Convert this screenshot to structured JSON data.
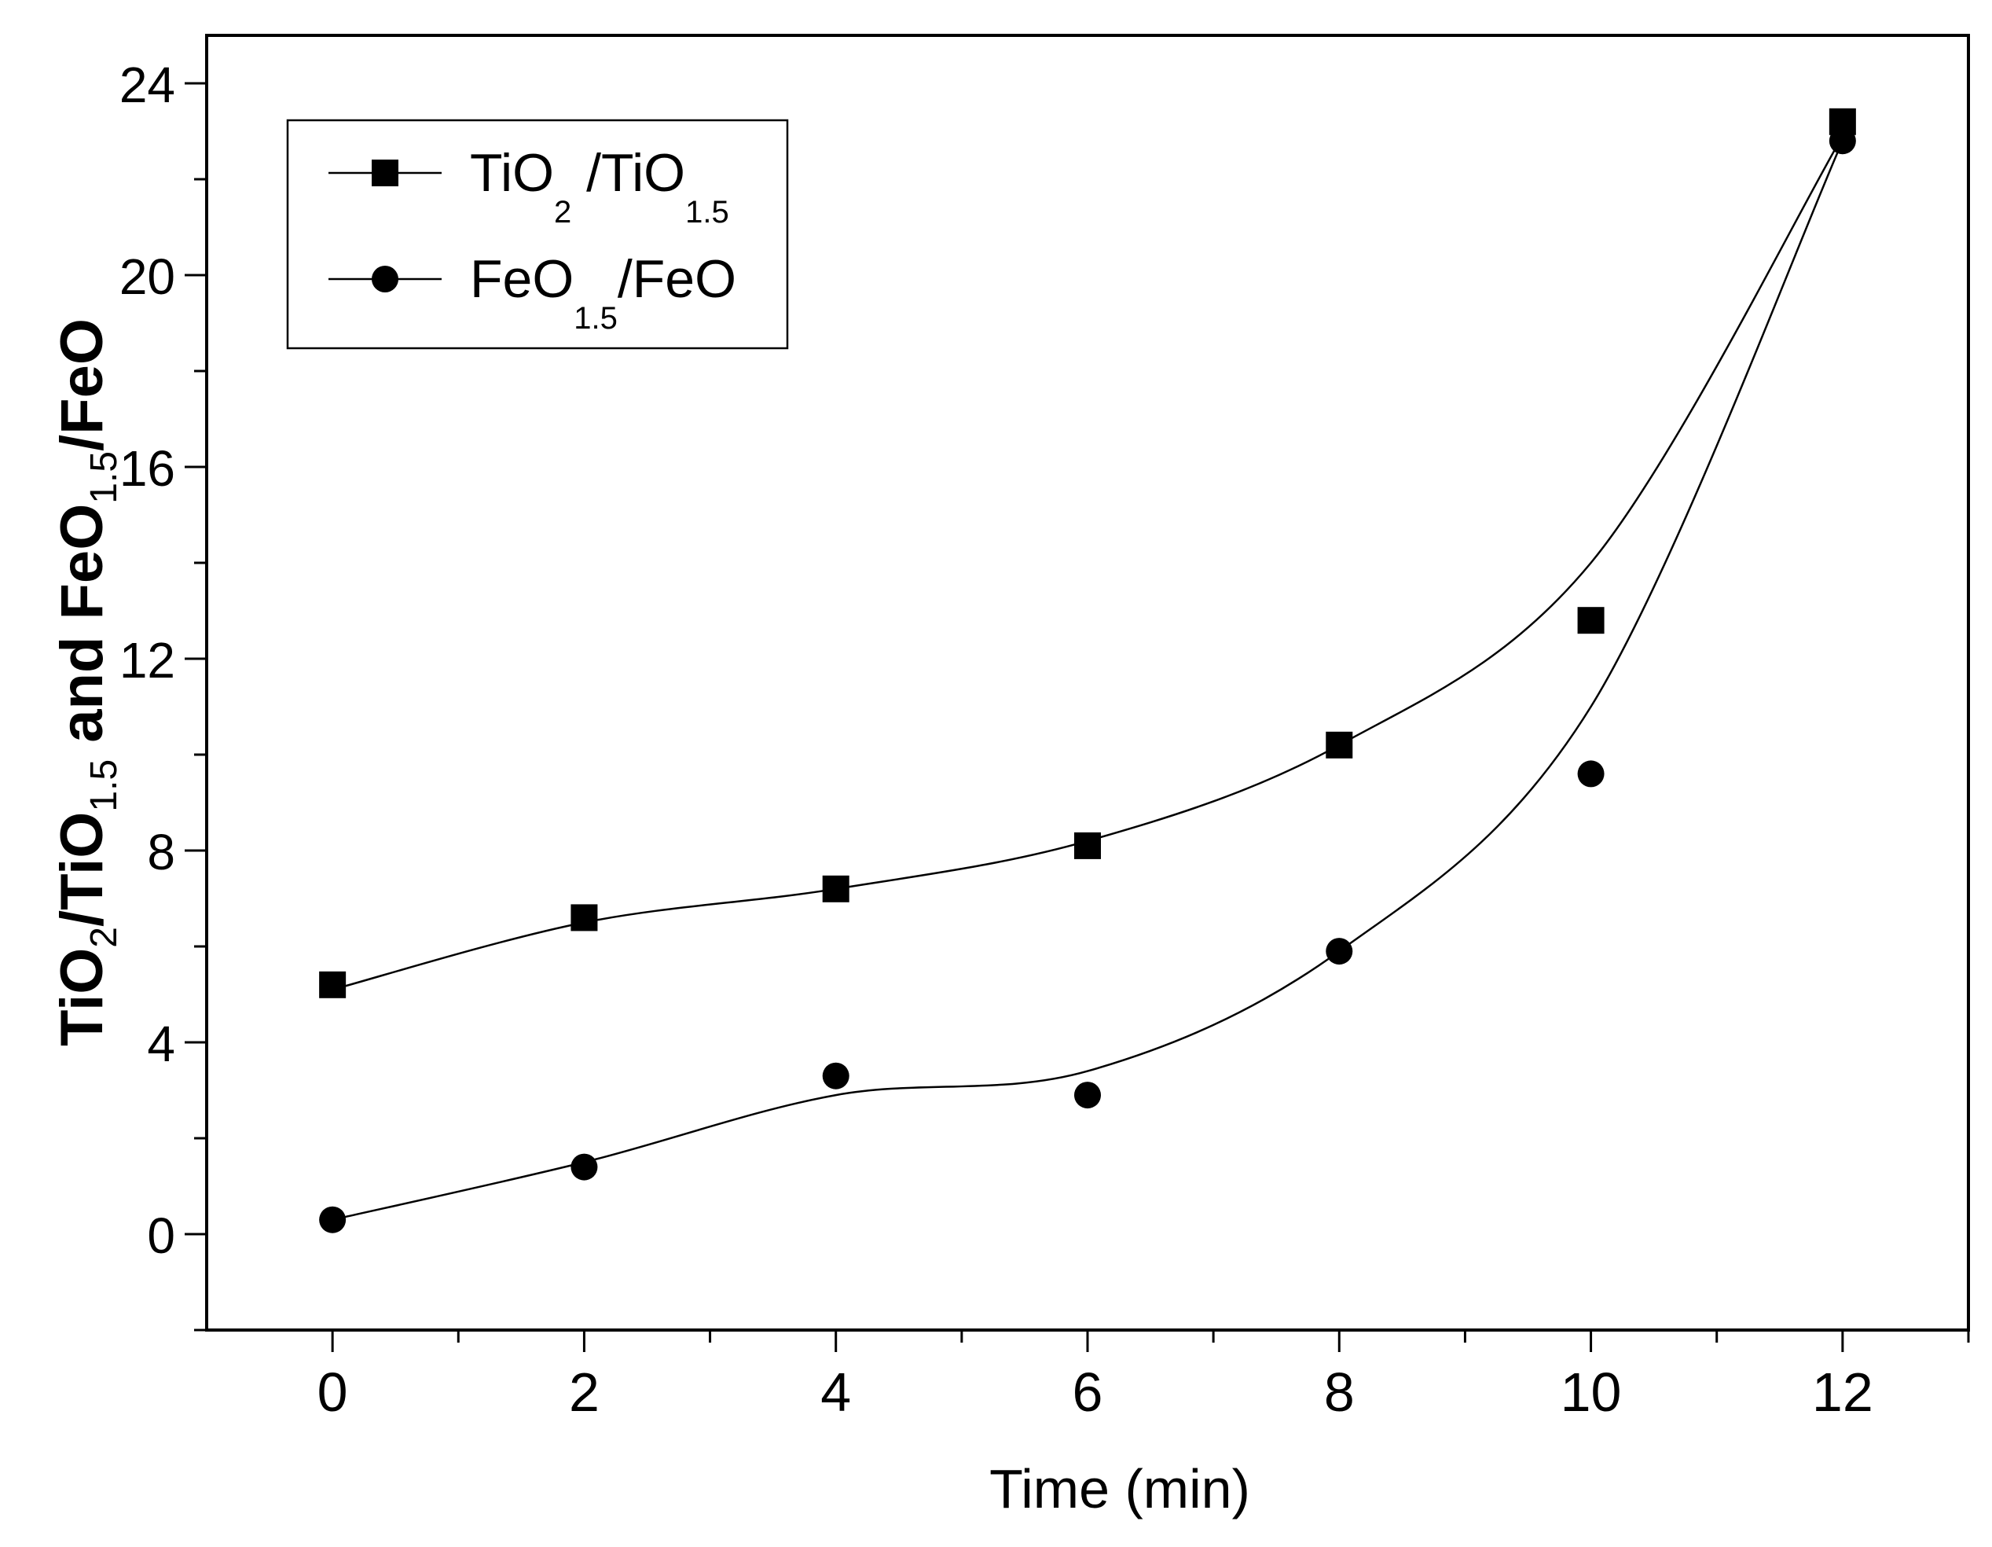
{
  "chart_data": {
    "type": "line",
    "title": "",
    "xlabel": "Time (min)",
    "ylabel": {
      "p1": "TiO",
      "s1": "2",
      "p2": "/TiO",
      "s2": "1.5",
      "p3": " and FeO",
      "s3": "1.5",
      "p4": "/FeO"
    },
    "xlim": [
      -1,
      13
    ],
    "ylim": [
      -2,
      25
    ],
    "xticks": [
      0,
      2,
      4,
      6,
      8,
      10,
      12
    ],
    "xtick_labels": [
      "0",
      "2",
      "4",
      "6",
      "8",
      "10",
      "12"
    ],
    "yticks": [
      0,
      4,
      8,
      12,
      16,
      20,
      24
    ],
    "ytick_labels": [
      "0",
      "4",
      "8",
      "12",
      "16",
      "20",
      "24"
    ],
    "x": [
      0,
      2,
      4,
      6,
      8,
      10,
      12
    ],
    "series": [
      {
        "name": "TiO2 /TiO1.5",
        "legend": {
          "p1": "TiO",
          "s1": "2",
          "p2": " /TiO",
          "s2": "1.5"
        },
        "marker": "square",
        "values": [
          5.2,
          6.6,
          7.2,
          8.1,
          10.2,
          12.8,
          23.2
        ],
        "fit": [
          5.1,
          6.5,
          7.2,
          8.2,
          10.2,
          14.0,
          22.9
        ]
      },
      {
        "name": "FeO1.5/FeO",
        "legend": {
          "p1": "FeO",
          "s1": "1.5",
          "p2": "/FeO",
          "s2": ""
        },
        "marker": "circle",
        "values": [
          0.3,
          1.4,
          3.3,
          2.9,
          5.9,
          9.6,
          22.8
        ],
        "fit": [
          0.3,
          1.5,
          2.9,
          3.4,
          5.9,
          11.0,
          22.8
        ]
      }
    ],
    "legend_position": "top-left",
    "grid": false,
    "colors": {
      "line": "#000000",
      "marker": "#000000",
      "background": "#ffffff"
    }
  }
}
